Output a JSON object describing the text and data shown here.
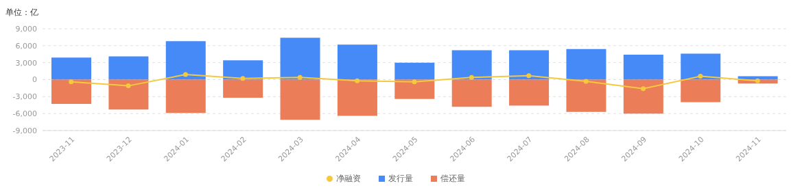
{
  "chart_data": {
    "type": "bar",
    "ylabel": "单位：亿",
    "stacked": true,
    "categories": [
      "2023-11",
      "2023-12",
      "2024-01",
      "2024-02",
      "2024-03",
      "2024-04",
      "2024-05",
      "2024-06",
      "2024-07",
      "2024-08",
      "2024-09",
      "2024-10",
      "2024-11"
    ],
    "series": [
      {
        "name": "净融资",
        "type": "line",
        "color": "#f5c93f",
        "marker": "circle",
        "values": [
          -400,
          -1100,
          900,
          200,
          400,
          -200,
          -400,
          400,
          700,
          -300,
          -1600,
          600,
          -200
        ]
      },
      {
        "name": "发行量",
        "color": "#468af8",
        "values": [
          3900,
          4100,
          6800,
          3400,
          7400,
          6200,
          3000,
          5200,
          5200,
          5400,
          4400,
          4600,
          600
        ]
      },
      {
        "name": "偿还量",
        "color": "#eb7d58",
        "values": [
          -4300,
          -5300,
          -5900,
          -3200,
          -7100,
          -6400,
          -3400,
          -4800,
          -4600,
          -5700,
          -6000,
          -4000,
          -700
        ]
      }
    ],
    "ylim": [
      -9000,
      9000
    ],
    "yticks": [
      {
        "value": -9000,
        "label": "-9,000"
      },
      {
        "value": -6000,
        "label": "-6,000"
      },
      {
        "value": -3000,
        "label": "-3,000"
      },
      0,
      {
        "value": 3000,
        "label": "3,000"
      },
      {
        "value": 6000,
        "label": "6,000"
      },
      {
        "value": 9000,
        "label": "9,000"
      }
    ],
    "grid": "y",
    "legend": "bottom"
  }
}
